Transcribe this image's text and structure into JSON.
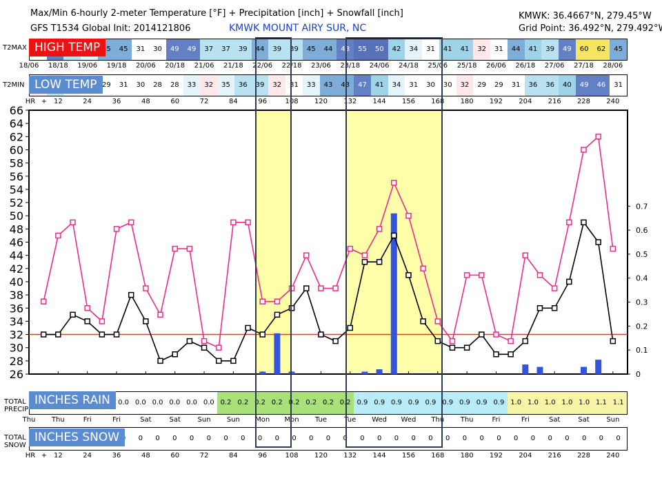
{
  "header": {
    "title": "Max/Min 6-hourly 2-meter Temperature [°F] + Precipitation [inch] + Snowfall [inch]",
    "model": "GFS T1534 Global Init: 2014121806",
    "station": "KMWK MOUNT AIRY SUR, NC",
    "station_coords": "KMWK: 36.4667°N, 279.45°W",
    "grid_point": "Grid Point: 36.492°N, 279.492°W"
  },
  "labels": {
    "high_temp": "HIGH TEMP",
    "low_temp": "LOW TEMP",
    "inches_rain": "INCHES RAIN",
    "inches_snow": "INCHES SNOW",
    "t2max": "T2MAX",
    "t2min": "T2MIN",
    "hr": "HR",
    "plus": "+",
    "total_precip_1": "TOTAL",
    "total_precip_2": "PRECIP",
    "total_snow_1": "TOTAL",
    "total_snow_2": "SNOW"
  },
  "colors": {
    "high_label": "#ee1111",
    "low_label": "#5b8bd0",
    "rain_label": "#5b8bd0",
    "snow_label": "#5b8bd0",
    "high_line": "#ee2a8a",
    "low_line": "#000000",
    "freeze_line": "#ff3300",
    "precip_bar": "#3355dd",
    "highlight": "#ffffaa"
  },
  "date_labels": [
    "18/06",
    "18/18",
    "19/06",
    "19/18",
    "20/06",
    "20/18",
    "21/06",
    "21/18",
    "22/06",
    "22/18",
    "23/06",
    "23/18",
    "24/06",
    "24/18",
    "25/06",
    "25/18",
    "26/06",
    "26/18",
    "27/06",
    "27/18",
    "28/06"
  ],
  "hour_labels": [
    "12",
    "24",
    "36",
    "48",
    "60",
    "72",
    "84",
    "96",
    "108",
    "120",
    "132",
    "144",
    "156",
    "168",
    "180",
    "192",
    "204",
    "216",
    "228",
    "240"
  ],
  "day_labels": [
    "Thu",
    "Thu",
    "Fri",
    "Fri",
    "Sat",
    "Sat",
    "Sun",
    "Sun",
    "Mon",
    "Mon",
    "Tue",
    "Tue",
    "Wed",
    "Wed",
    "Thu",
    "Thu",
    "Fri",
    "Fri",
    "Sat",
    "Sat",
    "Sun"
  ],
  "t2max_row": [
    "8",
    "49",
    "39",
    "35",
    "45",
    "45",
    "31",
    "30",
    "49",
    "49",
    "37",
    "37",
    "39",
    "44",
    "39",
    "39",
    "45",
    "44",
    "48",
    "55",
    "50",
    "42",
    "34",
    "31",
    "41",
    "41",
    "32",
    "31",
    "44",
    "41",
    "39",
    "49",
    "60",
    "62",
    "45"
  ],
  "t2min_row": [
    "32",
    "39",
    "34",
    "28",
    "29",
    "31",
    "30",
    "28",
    "28",
    "33",
    "32",
    "35",
    "36",
    "39",
    "32",
    "31",
    "33",
    "43",
    "43",
    "47",
    "41",
    "34",
    "31",
    "30",
    "30",
    "32",
    "29",
    "29",
    "31",
    "36",
    "36",
    "40",
    "49",
    "46",
    "31"
  ],
  "precip_row": [
    "0.0",
    "0.0",
    "0.0",
    "0.0",
    "0.0",
    "0.0",
    "0.0",
    "0.0",
    "0.0",
    "0.0",
    "0.0",
    "0.2",
    "0.2",
    "0.2",
    "0.2",
    "0.2",
    "0.2",
    "0.2",
    "0.2",
    "0.9",
    "0.9",
    "0.9",
    "0.9",
    "0.9",
    "0.9",
    "0.9",
    "0.9",
    "0.9",
    "1.0",
    "1.0",
    "1.0",
    "1.0",
    "1.0",
    "1.1",
    "1.1"
  ],
  "snow_row": [
    "0.0",
    "0.0",
    "0.0",
    "0.0",
    "0",
    "0",
    "0",
    "0",
    "0",
    "0",
    "0",
    "0",
    "0",
    "0",
    "0",
    "0",
    "0",
    "0",
    "0",
    "0",
    "0",
    "0",
    "0",
    "0",
    "0",
    "0",
    "0",
    "0",
    "0",
    "0",
    "0",
    "0",
    "0",
    "0",
    "0"
  ],
  "chart_data": {
    "type": "line",
    "title": "Max/Min 6-hourly 2-meter Temperature [°F] + Precipitation [inch]",
    "xlabel": "Forecast hour",
    "ylabel": "Temperature [°F]",
    "y2label": "Precipitation [inch]",
    "ylim": [
      26,
      66
    ],
    "y_ticks": [
      "26",
      "28",
      "30",
      "32",
      "34",
      "36",
      "38",
      "40",
      "42",
      "44",
      "46",
      "48",
      "50",
      "52",
      "54",
      "56",
      "58",
      "60",
      "62",
      "64",
      "66"
    ],
    "y2lim": [
      0,
      1.1
    ],
    "y2_ticks": [
      "0",
      "0.1",
      "0.2",
      "0.3",
      "0.4",
      "0.5",
      "0.6",
      "0.7"
    ],
    "freezing_line": 32,
    "x_hours": [
      6,
      12,
      18,
      24,
      30,
      36,
      42,
      48,
      54,
      60,
      66,
      72,
      78,
      84,
      90,
      96,
      102,
      108,
      114,
      120,
      126,
      132,
      138,
      144,
      150,
      156,
      162,
      168,
      174,
      180,
      186,
      192,
      198,
      204,
      210,
      216,
      222,
      228,
      234,
      240
    ],
    "series": [
      {
        "name": "T2MAX",
        "values": [
          37,
          47,
          49,
          36,
          34,
          48,
          49,
          39,
          35,
          45,
          45,
          31,
          30,
          49,
          49,
          37,
          37,
          39,
          44,
          39,
          39,
          45,
          44,
          48,
          55,
          50,
          42,
          34,
          31,
          41,
          41,
          32,
          31,
          44,
          41,
          39,
          49,
          60,
          62,
          45
        ]
      },
      {
        "name": "T2MIN",
        "values": [
          32,
          32,
          35,
          34,
          32,
          32,
          38,
          34,
          28,
          29,
          31,
          30,
          28,
          28,
          33,
          32,
          35,
          36,
          39,
          32,
          31,
          33,
          43,
          43,
          47,
          41,
          34,
          31,
          30,
          30,
          32,
          29,
          29,
          31,
          36,
          36,
          40,
          49,
          46,
          31
        ]
      }
    ],
    "precip_bars": [
      {
        "hour": 96,
        "value": 0.01
      },
      {
        "hour": 102,
        "value": 0.17
      },
      {
        "hour": 108,
        "value": 0.01
      },
      {
        "hour": 138,
        "value": 0.01
      },
      {
        "hour": 144,
        "value": 0.02
      },
      {
        "hour": 150,
        "value": 0.67
      },
      {
        "hour": 204,
        "value": 0.04
      },
      {
        "hour": 210,
        "value": 0.03
      },
      {
        "hour": 228,
        "value": 0.03
      },
      {
        "hour": 234,
        "value": 0.06
      }
    ],
    "highlight_ranges_hours": [
      [
        93,
        108
      ],
      [
        130,
        170
      ]
    ]
  }
}
